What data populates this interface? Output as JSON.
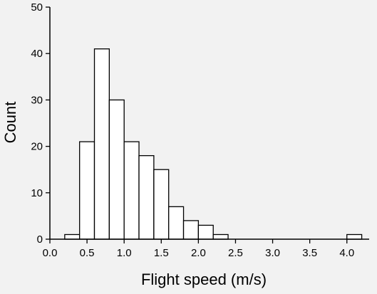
{
  "chart_data": {
    "type": "bar",
    "title": "",
    "xlabel": "Flight speed (m/s)",
    "ylabel": "Count",
    "xlim": [
      0.0,
      4.3
    ],
    "ylim": [
      0,
      50
    ],
    "xticks": [
      "0.0",
      "0.5",
      "1.0",
      "1.5",
      "2.0",
      "2.5",
      "3.0",
      "3.5",
      "4.0"
    ],
    "yticks": [
      "0",
      "10",
      "20",
      "30",
      "40",
      "50"
    ],
    "grid": false,
    "legend": "none",
    "bins": [
      {
        "x0": 0.2,
        "x1": 0.4,
        "count": 1
      },
      {
        "x0": 0.4,
        "x1": 0.6,
        "count": 21
      },
      {
        "x0": 0.6,
        "x1": 0.8,
        "count": 41
      },
      {
        "x0": 0.8,
        "x1": 1.0,
        "count": 30
      },
      {
        "x0": 1.0,
        "x1": 1.2,
        "count": 21
      },
      {
        "x0": 1.2,
        "x1": 1.4,
        "count": 18
      },
      {
        "x0": 1.4,
        "x1": 1.6,
        "count": 15
      },
      {
        "x0": 1.6,
        "x1": 1.8,
        "count": 7
      },
      {
        "x0": 1.8,
        "x1": 2.0,
        "count": 4
      },
      {
        "x0": 2.0,
        "x1": 2.2,
        "count": 3
      },
      {
        "x0": 2.2,
        "x1": 2.4,
        "count": 1
      },
      {
        "x0": 4.0,
        "x1": 4.2,
        "count": 1
      }
    ],
    "bar_fill": "#ffffff",
    "bar_stroke": "#000000",
    "background": "#f2f2f2"
  }
}
